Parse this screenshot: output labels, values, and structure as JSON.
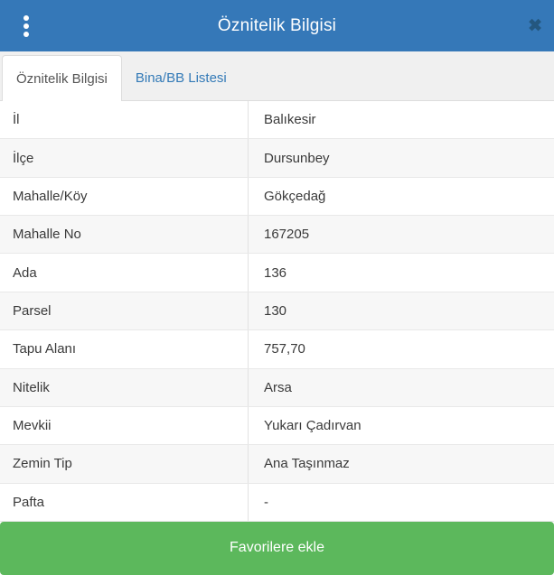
{
  "dialog": {
    "title": "Öznitelik Bilgisi"
  },
  "tabs": [
    {
      "label": "Öznitelik Bilgisi",
      "active": true
    },
    {
      "label": "Bina/BB Listesi",
      "active": false
    }
  ],
  "table": {
    "rows": [
      {
        "label": "İl",
        "value": "Balıkesir"
      },
      {
        "label": "İlçe",
        "value": "Dursunbey"
      },
      {
        "label": "Mahalle/Köy",
        "value": "Gökçedağ"
      },
      {
        "label": "Mahalle No",
        "value": "167205"
      },
      {
        "label": "Ada",
        "value": "136"
      },
      {
        "label": "Parsel",
        "value": "130"
      },
      {
        "label": "Tapu Alanı",
        "value": "757,70"
      },
      {
        "label": "Nitelik",
        "value": "Arsa"
      },
      {
        "label": "Mevkii",
        "value": "Yukarı Çadırvan"
      },
      {
        "label": "Zemin Tip",
        "value": "Ana Taşınmaz"
      },
      {
        "label": "Pafta",
        "value": "-"
      }
    ]
  },
  "footer": {
    "favorite_button": "Favorilere ekle"
  },
  "icons": {
    "menu": "kebab-menu-icon",
    "close": "close-icon",
    "close_glyph": "✖"
  },
  "colors": {
    "header_bg": "#3578b8",
    "link_blue": "#337ab7",
    "button_green": "#5cb85c",
    "close_icon": "#24577f",
    "tabbar_bg": "#f0f0f0",
    "stripe": "#f7f7f7"
  }
}
